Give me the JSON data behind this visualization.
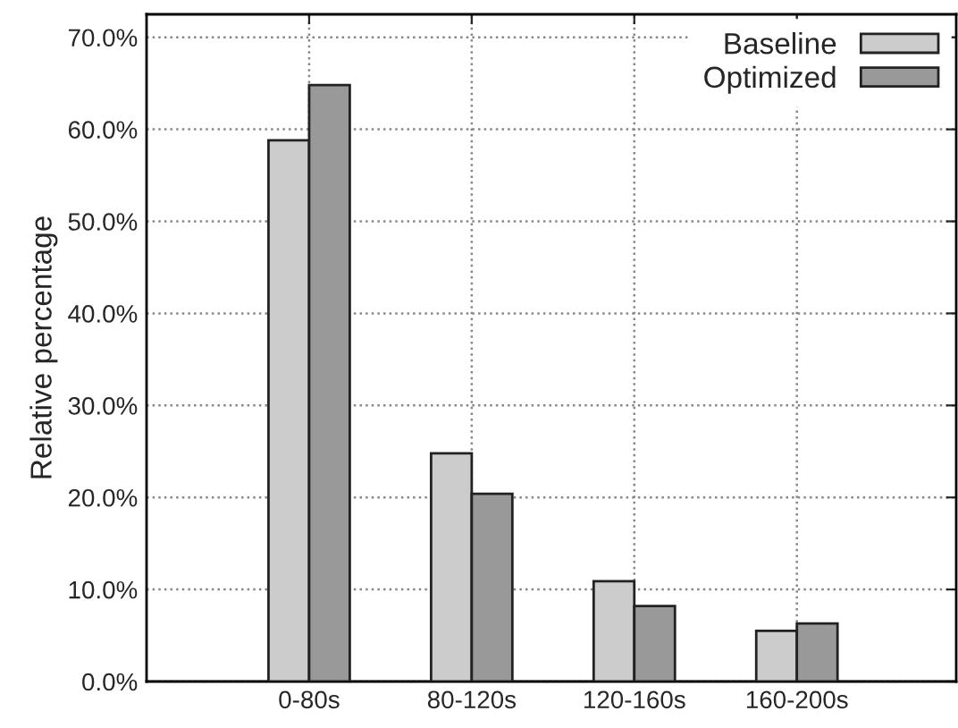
{
  "chart_data": {
    "type": "bar",
    "ylabel": "Relative percentage",
    "categories": [
      "0-80s",
      "80-120s",
      "120-160s",
      "160-200s"
    ],
    "series": [
      {
        "name": "Baseline",
        "color": "#cccccc",
        "values": [
          58.8,
          24.8,
          10.9,
          5.5
        ]
      },
      {
        "name": "Optimized",
        "color": "#999999",
        "values": [
          64.8,
          20.4,
          8.2,
          6.3
        ]
      }
    ],
    "ylim": [
      0,
      72.5
    ],
    "yticks": [
      {
        "value": 0,
        "label": "0.0%"
      },
      {
        "value": 10,
        "label": "10.0%"
      },
      {
        "value": 20,
        "label": "20.0%"
      },
      {
        "value": 30,
        "label": "30.0%"
      },
      {
        "value": 40,
        "label": "40.0%"
      },
      {
        "value": 50,
        "label": "50.0%"
      },
      {
        "value": 60,
        "label": "60.0%"
      },
      {
        "value": 70,
        "label": "70.0%"
      }
    ],
    "grid": true,
    "legend": "top right"
  }
}
